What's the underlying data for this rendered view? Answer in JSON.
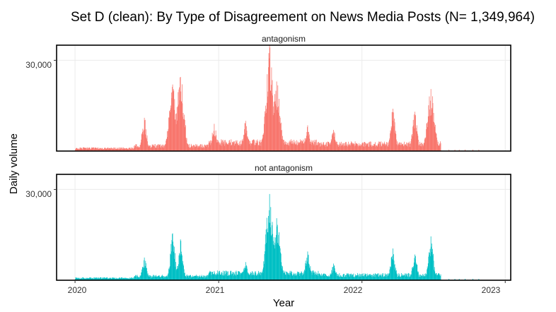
{
  "chart_data": {
    "type": "bar",
    "title": "Set D (clean): By Type of Disagreement on News Media Posts (N= 1,349,964)",
    "xlabel": "Year",
    "ylabel": "Daily volume",
    "x_ticks": [
      "2020",
      "2021",
      "2022",
      "2023"
    ],
    "y_ticks": [
      30000
    ],
    "y_tick_labels": [
      "30,000"
    ],
    "xlim": [
      "2019-11-15",
      "2023-01-15"
    ],
    "ylim": [
      0,
      35000
    ],
    "grid": true,
    "legend": "none",
    "series": [
      {
        "name": "antagonism",
        "color": "#F8766D",
        "peaks": [
          {
            "date": "2020-06-25",
            "value": 11000
          },
          {
            "date": "2020-09-05",
            "value": 22000
          },
          {
            "date": "2020-09-25",
            "value": 24500
          },
          {
            "date": "2020-12-20",
            "value": 9000
          },
          {
            "date": "2021-03-10",
            "value": 10000
          },
          {
            "date": "2021-05-10",
            "value": 35000
          },
          {
            "date": "2021-05-28",
            "value": 23000
          },
          {
            "date": "2021-08-15",
            "value": 8500
          },
          {
            "date": "2021-10-20",
            "value": 7000
          },
          {
            "date": "2022-03-20",
            "value": 14000
          },
          {
            "date": "2022-05-15",
            "value": 13000
          },
          {
            "date": "2022-06-25",
            "value": 20500
          }
        ]
      },
      {
        "name": "not antagonism",
        "color": "#00BFC4",
        "peaks": [
          {
            "date": "2020-06-25",
            "value": 7500
          },
          {
            "date": "2020-09-05",
            "value": 15500
          },
          {
            "date": "2020-09-25",
            "value": 13500
          },
          {
            "date": "2021-03-10",
            "value": 6000
          },
          {
            "date": "2021-05-10",
            "value": 28500
          },
          {
            "date": "2021-05-28",
            "value": 20500
          },
          {
            "date": "2021-08-15",
            "value": 9500
          },
          {
            "date": "2021-10-20",
            "value": 5500
          },
          {
            "date": "2022-03-20",
            "value": 10500
          },
          {
            "date": "2022-05-15",
            "value": 8500
          },
          {
            "date": "2022-06-25",
            "value": 14500
          }
        ]
      }
    ]
  }
}
